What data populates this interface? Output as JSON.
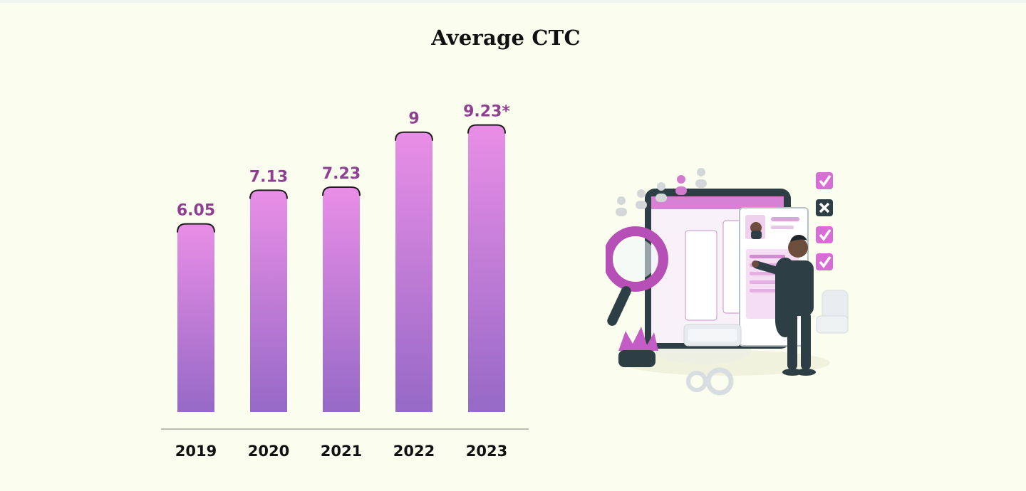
{
  "chart_data": {
    "type": "bar",
    "title": "Average CTC",
    "categories": [
      "2019",
      "2020",
      "2021",
      "2022",
      "2023"
    ],
    "values": [
      6.05,
      7.13,
      7.23,
      9,
      9.23
    ],
    "data_labels": [
      "6.05",
      "7.13",
      "7.23",
      "9",
      "9.23*"
    ],
    "xlabel": "",
    "ylabel": "",
    "ylim": [
      0,
      10
    ],
    "grid": false,
    "legend": "none",
    "colors": {
      "bar_top": "#e98ee6",
      "bar_bottom": "#9569c6",
      "bar_edge": "#1d1d1d",
      "label": "#8f3f91",
      "tick_label": "#111111",
      "axis_line": "#7a7a7a"
    }
  },
  "illustration": {
    "icon": "recruiter-reviewing-profiles-illustration",
    "accent_color": "#c74dc6",
    "dark_color": "#2d3f45"
  }
}
